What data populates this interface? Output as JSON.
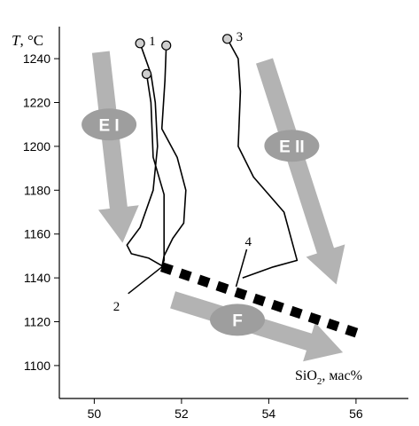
{
  "chart_data": {
    "type": "line",
    "y_axis": {
      "label_italic": "T",
      "label_unit": ", °C",
      "range": [
        1085,
        1255
      ],
      "ticks": [
        1100,
        1120,
        1140,
        1160,
        1180,
        1200,
        1220,
        1240
      ]
    },
    "x_axis": {
      "label_main": "SiO",
      "label_sub": "2",
      "label_unit": ", мас%",
      "range": [
        49.2,
        57.2
      ],
      "ticks": [
        50,
        52,
        54,
        56
      ]
    },
    "grid": false,
    "series": [
      {
        "label": "1",
        "points": [
          [
            51.05,
            1247
          ],
          [
            51.3,
            1233
          ],
          [
            51.4,
            1220
          ],
          [
            51.45,
            1200
          ],
          [
            51.35,
            1180
          ],
          [
            51.05,
            1163
          ],
          [
            50.75,
            1155
          ],
          [
            50.85,
            1151
          ],
          [
            51.25,
            1149
          ],
          [
            51.6,
            1145
          ]
        ]
      },
      {
        "label": "",
        "points": [
          [
            51.2,
            1233
          ],
          [
            51.3,
            1220
          ],
          [
            51.35,
            1195
          ],
          [
            51.6,
            1178
          ],
          [
            51.6,
            1160
          ],
          [
            51.6,
            1148
          ],
          [
            51.55,
            1145
          ]
        ]
      },
      {
        "label": "",
        "points": [
          [
            51.65,
            1246
          ],
          [
            51.62,
            1230
          ],
          [
            51.55,
            1208
          ],
          [
            51.9,
            1195
          ],
          [
            52.1,
            1180
          ],
          [
            52.05,
            1165
          ],
          [
            51.8,
            1158
          ],
          [
            51.6,
            1150
          ],
          [
            51.55,
            1145
          ]
        ]
      },
      {
        "label": "3",
        "points": [
          [
            53.05,
            1249
          ],
          [
            53.3,
            1240
          ],
          [
            53.35,
            1225
          ],
          [
            53.3,
            1200
          ],
          [
            53.65,
            1186
          ],
          [
            54.35,
            1170
          ],
          [
            54.65,
            1148
          ],
          [
            54.1,
            1145
          ],
          [
            53.4,
            1140
          ]
        ]
      }
    ],
    "marker_points": [
      [
        51.05,
        1247
      ],
      [
        51.2,
        1233
      ],
      [
        51.65,
        1246
      ],
      [
        53.05,
        1249
      ]
    ],
    "dashed_line": {
      "label": "4",
      "points": [
        [
          51.55,
          1145
        ],
        [
          56.15,
          1114
        ]
      ]
    },
    "callouts": [
      {
        "label": "2",
        "target": [
          51.55,
          1145
        ]
      },
      {
        "label": "4",
        "target": [
          53.25,
          1136
        ]
      }
    ],
    "arrows": [
      {
        "label": "E I",
        "from": [
          50.15,
          1243
        ],
        "to": [
          50.65,
          1156
        ]
      },
      {
        "label": "E II",
        "from": [
          53.9,
          1239
        ],
        "to": [
          55.55,
          1137
        ]
      },
      {
        "label": "F",
        "from": [
          51.8,
          1130
        ],
        "to": [
          55.7,
          1106
        ]
      }
    ],
    "colors": {
      "arrow": "#b3b3b3",
      "ellipse": "#9e9e9e",
      "marker_fill": "#cfcfcf",
      "ink": "#000000"
    }
  }
}
